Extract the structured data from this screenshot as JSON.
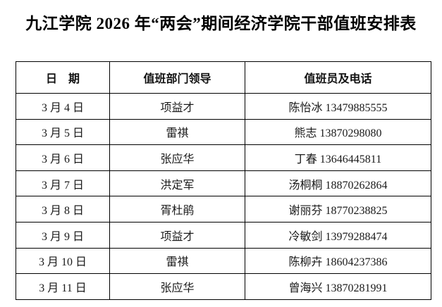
{
  "title": "九江学院 2026 年“两会”期间经济学院干部值班安排表",
  "colors": {
    "background": "#ffffff",
    "text": "#1a1a1a",
    "border": "#000000"
  },
  "table": {
    "headers": [
      "日　期",
      "值班部门领导",
      "值班员及电话"
    ],
    "rows": [
      {
        "date": "3 月 4 日",
        "leader": "项益才",
        "duty": "陈怡冰 13479885555"
      },
      {
        "date": "3 月 5 日",
        "leader": "雷祺",
        "duty": "熊志 13870298080"
      },
      {
        "date": "3 月 6 日",
        "leader": "张应华",
        "duty": "丁春 13646445811"
      },
      {
        "date": "3 月 7 日",
        "leader": "洪定军",
        "duty": "汤桐桐 18870262864"
      },
      {
        "date": "3 月 8 日",
        "leader": "胥杜鹃",
        "duty": "谢丽芬 18770238825"
      },
      {
        "date": "3 月 9 日",
        "leader": "项益才",
        "duty": "冷敏剑 13979288474"
      },
      {
        "date": "3 月 10 日",
        "leader": "雷祺",
        "duty": "陈柳卉 18604237386"
      },
      {
        "date": "3 月 11 日",
        "leader": "张应华",
        "duty": "曾海兴 13870281991"
      }
    ]
  }
}
